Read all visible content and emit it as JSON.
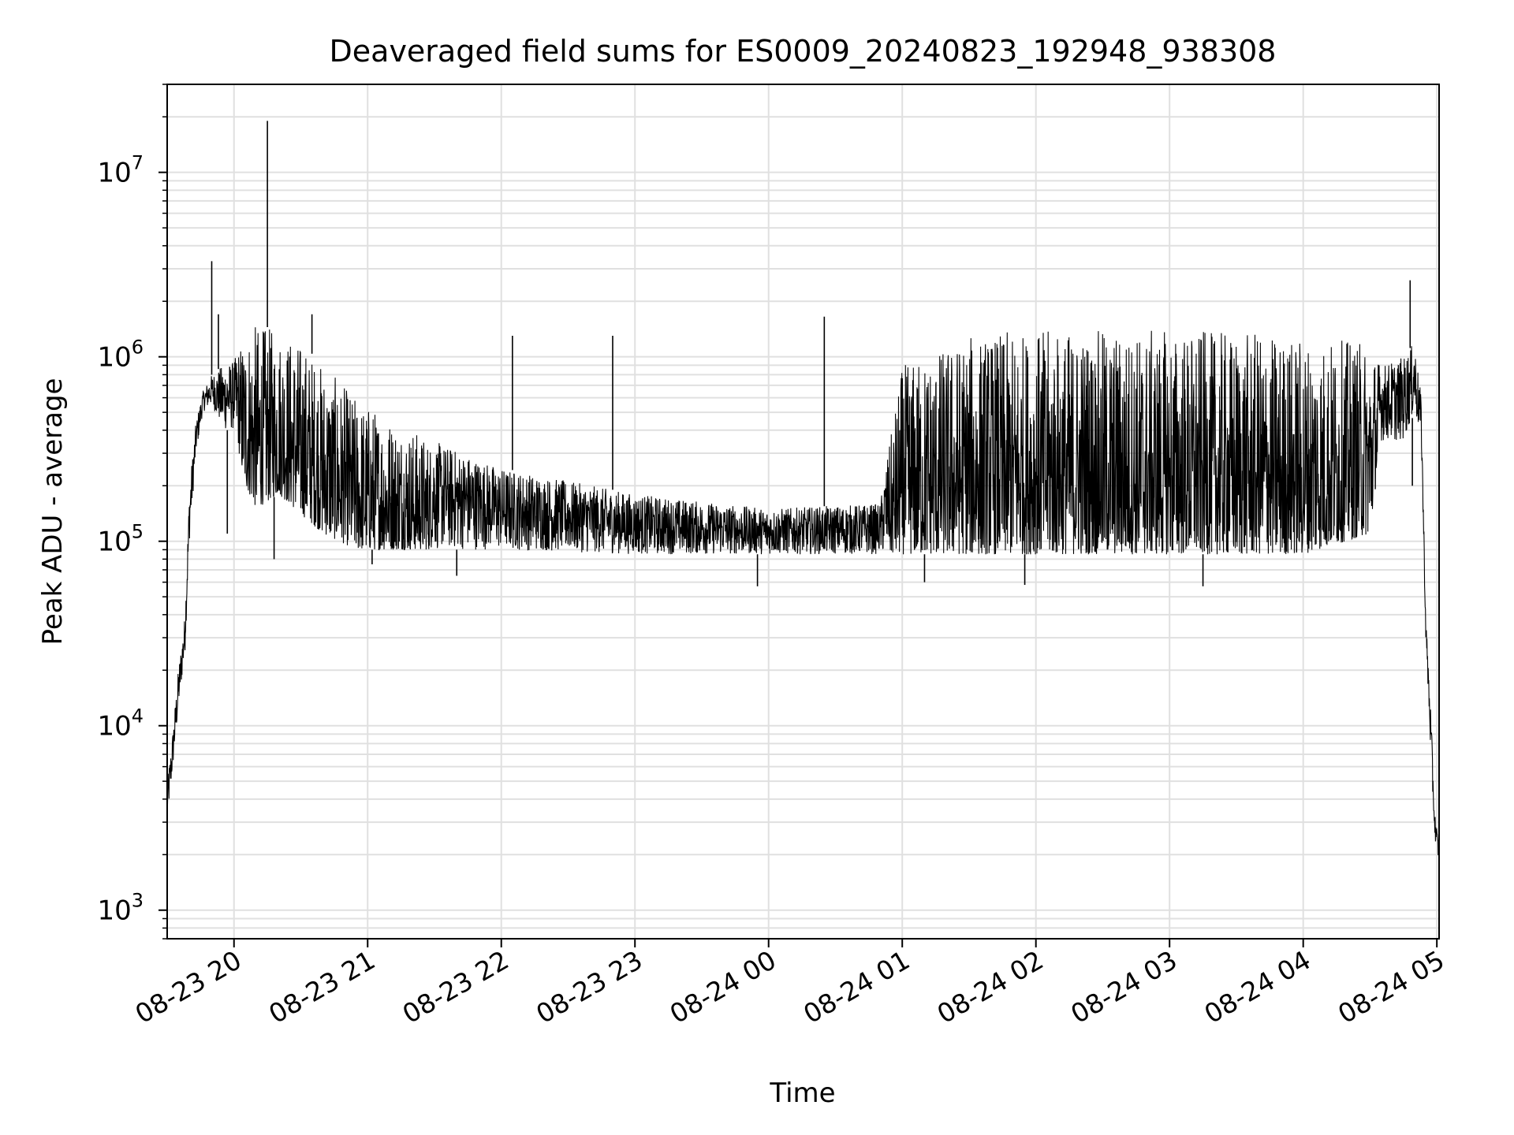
{
  "chart_data": {
    "type": "line",
    "title": "Deaveraged field sums for ES0009_20240823_192948_938308",
    "xlabel": "Time",
    "ylabel": "Peak ADU - average",
    "y_scale": "log",
    "ylim": [
      700,
      30000000
    ],
    "xlim": [
      "2024-08-23 19:30",
      "2024-08-24 05:01"
    ],
    "grid": true,
    "legend": "none",
    "line_color": "#000000",
    "grid_color": "#e0e0e0",
    "x_ticks": [
      {
        "t": "2024-08-23 20:00",
        "label": "08-23 20"
      },
      {
        "t": "2024-08-23 21:00",
        "label": "08-23 21"
      },
      {
        "t": "2024-08-23 22:00",
        "label": "08-23 22"
      },
      {
        "t": "2024-08-23 23:00",
        "label": "08-23 23"
      },
      {
        "t": "2024-08-24 00:00",
        "label": "08-24 00"
      },
      {
        "t": "2024-08-24 01:00",
        "label": "08-24 01"
      },
      {
        "t": "2024-08-24 02:00",
        "label": "08-24 02"
      },
      {
        "t": "2024-08-24 03:00",
        "label": "08-24 03"
      },
      {
        "t": "2024-08-24 04:00",
        "label": "08-24 04"
      },
      {
        "t": "2024-08-24 05:00",
        "label": "08-24 05"
      }
    ],
    "y_ticks": [
      {
        "value": 1000,
        "base": "10",
        "exp": "3"
      },
      {
        "value": 10000,
        "base": "10",
        "exp": "4"
      },
      {
        "value": 100000,
        "base": "10",
        "exp": "5"
      },
      {
        "value": 1000000,
        "base": "10",
        "exp": "6"
      },
      {
        "value": 10000000,
        "base": "10",
        "exp": "7"
      }
    ],
    "envelope": [
      {
        "t": "2024-08-23 19:30",
        "low": 3000,
        "high": 5000
      },
      {
        "t": "2024-08-23 19:32",
        "low": 5000,
        "high": 8000
      },
      {
        "t": "2024-08-23 19:35",
        "low": 12000,
        "high": 20000
      },
      {
        "t": "2024-08-23 19:38",
        "low": 25000,
        "high": 40000
      },
      {
        "t": "2024-08-23 19:40",
        "low": 100000,
        "high": 200000
      },
      {
        "t": "2024-08-23 19:43",
        "low": 300000,
        "high": 450000
      },
      {
        "t": "2024-08-23 19:46",
        "low": 500000,
        "high": 650000
      },
      {
        "t": "2024-08-23 19:50",
        "low": 550000,
        "high": 800000
      },
      {
        "t": "2024-08-23 19:55",
        "low": 400000,
        "high": 900000
      },
      {
        "t": "2024-08-23 20:00",
        "low": 400000,
        "high": 950000
      },
      {
        "t": "2024-08-23 20:05",
        "low": 200000,
        "high": 1400000
      },
      {
        "t": "2024-08-23 20:10",
        "low": 150000,
        "high": 1500000
      },
      {
        "t": "2024-08-23 20:20",
        "low": 180000,
        "high": 1400000
      },
      {
        "t": "2024-08-23 20:30",
        "low": 140000,
        "high": 1200000
      },
      {
        "t": "2024-08-23 20:40",
        "low": 110000,
        "high": 900000
      },
      {
        "t": "2024-08-23 20:55",
        "low": 90000,
        "high": 600000
      },
      {
        "t": "2024-08-23 21:30",
        "low": 90000,
        "high": 350000
      },
      {
        "t": "2024-08-23 22:00",
        "low": 90000,
        "high": 250000
      },
      {
        "t": "2024-08-23 23:00",
        "low": 85000,
        "high": 180000
      },
      {
        "t": "2024-08-24 00:00",
        "low": 85000,
        "high": 150000
      },
      {
        "t": "2024-08-24 00:50",
        "low": 85000,
        "high": 160000
      },
      {
        "t": "2024-08-24 01:00",
        "low": 85000,
        "high": 900000
      },
      {
        "t": "2024-08-24 01:30",
        "low": 85000,
        "high": 1300000
      },
      {
        "t": "2024-08-24 02:00",
        "low": 85000,
        "high": 1400000
      },
      {
        "t": "2024-08-24 03:00",
        "low": 85000,
        "high": 1400000
      },
      {
        "t": "2024-08-24 04:00",
        "low": 85000,
        "high": 1300000
      },
      {
        "t": "2024-08-24 04:30",
        "low": 110000,
        "high": 1200000
      },
      {
        "t": "2024-08-24 04:35",
        "low": 350000,
        "high": 900000
      },
      {
        "t": "2024-08-24 04:45",
        "low": 350000,
        "high": 1000000
      },
      {
        "t": "2024-08-24 04:50",
        "low": 500000,
        "high": 1200000
      },
      {
        "t": "2024-08-24 04:53",
        "low": 350000,
        "high": 600000
      },
      {
        "t": "2024-08-24 04:55",
        "low": 30000,
        "high": 40000
      },
      {
        "t": "2024-08-24 04:57",
        "low": 8000,
        "high": 15000
      },
      {
        "t": "2024-08-24 04:59",
        "low": 2500,
        "high": 3500
      },
      {
        "t": "2024-08-24 05:01",
        "low": 1800,
        "high": 2200
      }
    ],
    "spikes": [
      {
        "t": "2024-08-23 19:50",
        "value": 3300000
      },
      {
        "t": "2024-08-23 19:53",
        "value": 1700000
      },
      {
        "t": "2024-08-23 19:57",
        "value": 110000
      },
      {
        "t": "2024-08-23 20:15",
        "value": 19000000
      },
      {
        "t": "2024-08-23 20:18",
        "value": 80000
      },
      {
        "t": "2024-08-23 20:35",
        "value": 1700000
      },
      {
        "t": "2024-08-23 21:02",
        "value": 75000
      },
      {
        "t": "2024-08-23 21:40",
        "value": 65000
      },
      {
        "t": "2024-08-23 22:05",
        "value": 1300000
      },
      {
        "t": "2024-08-23 22:50",
        "value": 1300000
      },
      {
        "t": "2024-08-23 23:55",
        "value": 57000
      },
      {
        "t": "2024-08-24 00:25",
        "value": 1650000
      },
      {
        "t": "2024-08-24 01:10",
        "value": 60000
      },
      {
        "t": "2024-08-24 01:55",
        "value": 58000
      },
      {
        "t": "2024-08-24 03:15",
        "value": 57000
      },
      {
        "t": "2024-08-24 04:48",
        "value": 2600000
      },
      {
        "t": "2024-08-24 04:49",
        "value": 200000
      }
    ]
  }
}
